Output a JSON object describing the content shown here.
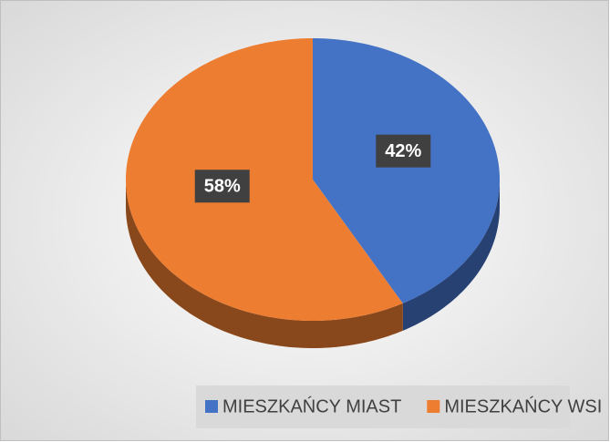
{
  "chart_data": {
    "type": "pie",
    "categories": [
      "MIESZKAŃCY MIAST",
      "MIESZKAŃCY WSI"
    ],
    "values": [
      42,
      58
    ],
    "value_labels": [
      "42%",
      "58%"
    ],
    "colors": [
      "#4472c4",
      "#ed7d31"
    ],
    "legend": "bottom"
  }
}
